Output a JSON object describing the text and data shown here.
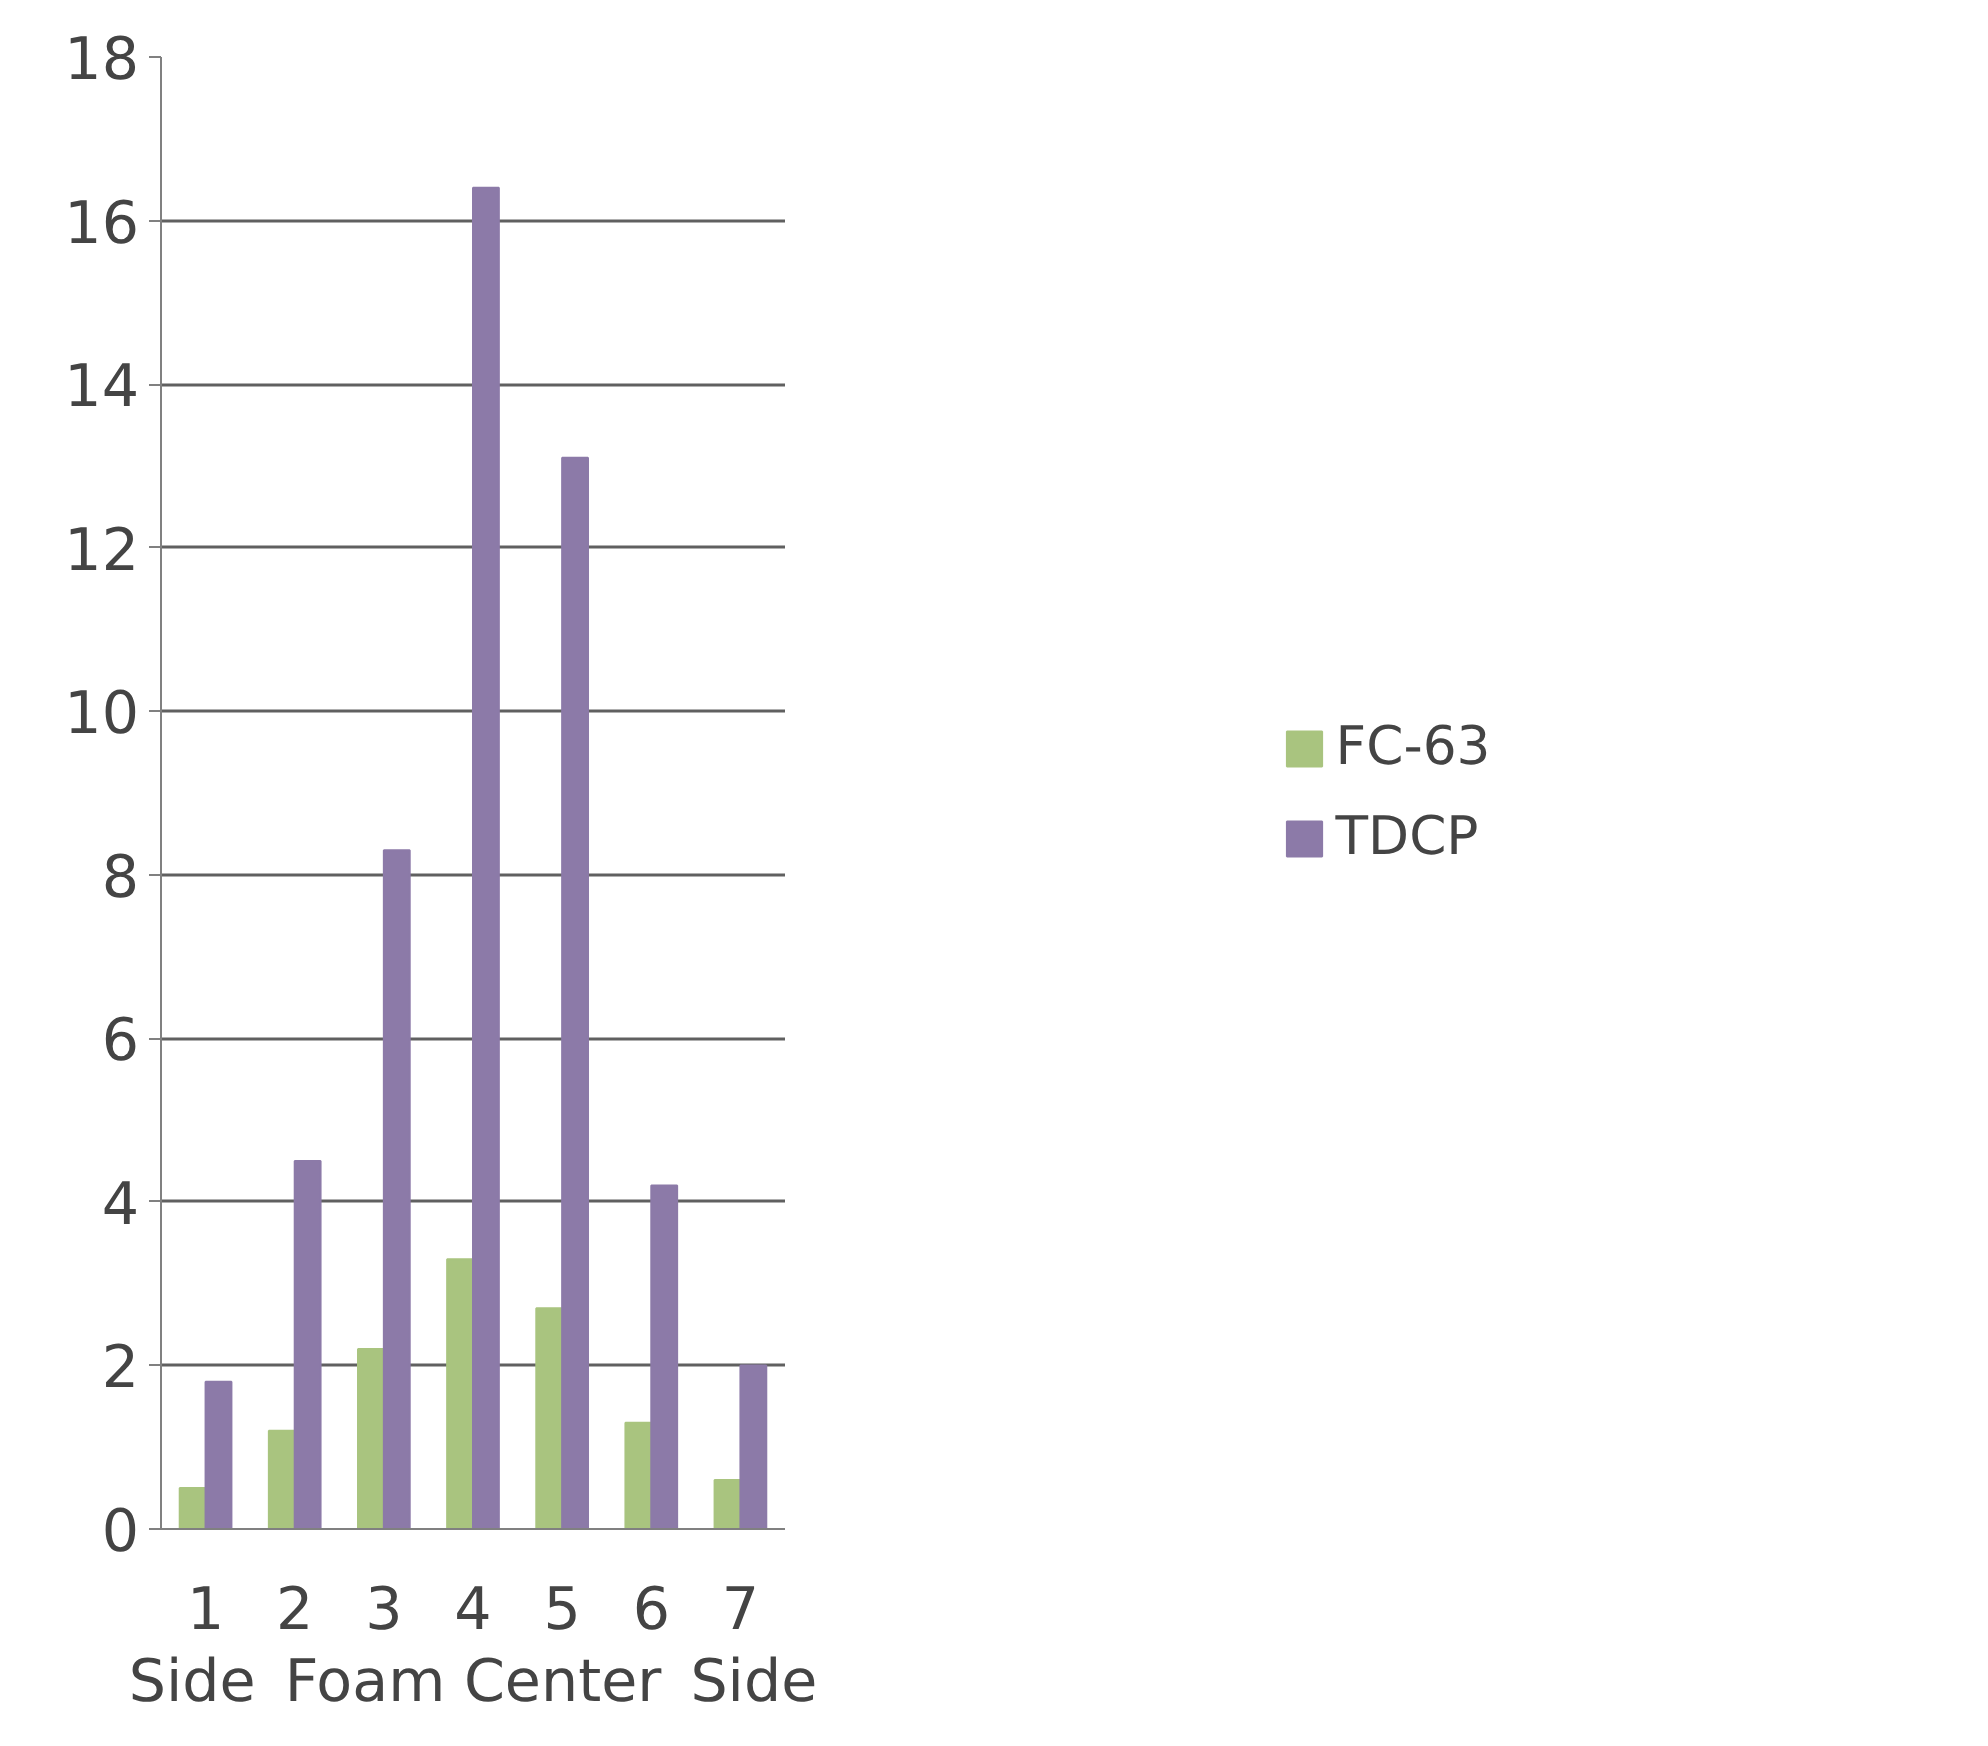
{
  "chart_data": {
    "type": "bar",
    "categories": [
      "1",
      "2",
      "3",
      "4",
      "5",
      "6",
      "7"
    ],
    "series": [
      {
        "name": "FC-63",
        "color": "#a9c47f",
        "values": [
          0.5,
          1.2,
          2.2,
          3.3,
          2.7,
          1.3,
          0.6
        ]
      },
      {
        "name": "TDCP",
        "color": "#8c7aa8",
        "values": [
          1.8,
          4.5,
          8.3,
          16.4,
          13.1,
          4.2,
          2.0
        ]
      }
    ],
    "ylim": [
      0,
      18
    ],
    "yticks": [
      0,
      2,
      4,
      6,
      8,
      10,
      12,
      14,
      16,
      18
    ],
    "grid": "y",
    "legend": "right",
    "annotations": [
      "Side",
      "Foam Center",
      "Side"
    ]
  }
}
